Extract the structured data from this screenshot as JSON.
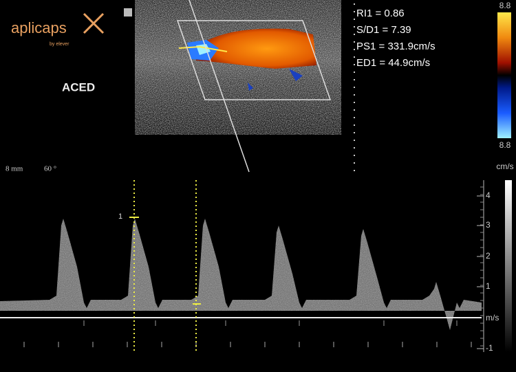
{
  "logo": {
    "name": "aplicaps",
    "tagline": "by elever"
  },
  "mode_label": "ACED",
  "probe": {
    "depth": "8 mm",
    "angle": "60 °"
  },
  "measurements": [
    "RI1 = 0.86",
    "S/D1 = 7.39",
    "PS1 = 331.9cm/s",
    "ED1 = 44.9cm/s"
  ],
  "color_scale": {
    "top": "8.8",
    "bottom": "8.8",
    "unit": "cm/s"
  },
  "velocity_scale": {
    "ticks": [
      "4",
      "3",
      "2",
      "1",
      "-1"
    ],
    "unit": "m/s"
  },
  "cursor_label": "1"
}
